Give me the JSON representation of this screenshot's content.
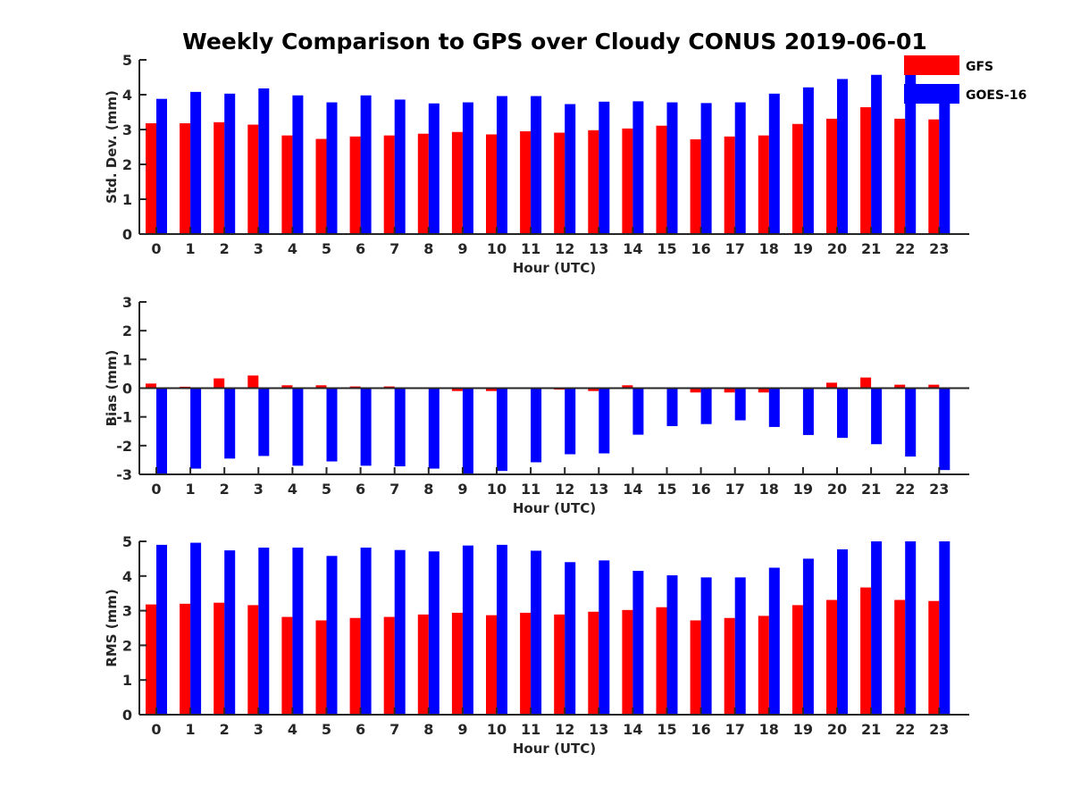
{
  "title": "Weekly Comparison to GPS over Cloudy CONUS 2019-06-01",
  "colors": {
    "GFS": "#ff0000",
    "GOES-16": "#0000ff",
    "axis": "#262626"
  },
  "legend": [
    {
      "name": "GFS",
      "color": "#ff0000"
    },
    {
      "name": "GOES-16",
      "color": "#0000ff"
    }
  ],
  "chart_data": [
    {
      "type": "bar",
      "xlabel": "Hour (UTC)",
      "ylabel": "Std. Dev. (mm)",
      "categories": [
        "0",
        "1",
        "2",
        "3",
        "4",
        "5",
        "6",
        "7",
        "8",
        "9",
        "10",
        "11",
        "12",
        "13",
        "14",
        "15",
        "16",
        "17",
        "18",
        "19",
        "20",
        "21",
        "22",
        "23"
      ],
      "ylim": [
        0,
        5
      ],
      "yticks": [
        0,
        1,
        2,
        3,
        4,
        5
      ],
      "series": [
        {
          "name": "GFS",
          "values": [
            3.18,
            3.18,
            3.21,
            3.14,
            2.83,
            2.73,
            2.8,
            2.83,
            2.88,
            2.93,
            2.86,
            2.95,
            2.91,
            2.98,
            3.03,
            3.11,
            2.72,
            2.8,
            2.83,
            3.16,
            3.31,
            3.64,
            3.31,
            3.29
          ]
        },
        {
          "name": "GOES-16",
          "values": [
            3.88,
            4.08,
            4.03,
            4.18,
            3.98,
            3.78,
            3.98,
            3.86,
            3.75,
            3.78,
            3.96,
            3.96,
            3.73,
            3.8,
            3.81,
            3.78,
            3.76,
            3.78,
            4.03,
            4.21,
            4.45,
            4.57,
            4.57,
            3.95
          ]
        }
      ]
    },
    {
      "type": "bar",
      "xlabel": "Hour (UTC)",
      "ylabel": "Bias (mm)",
      "categories": [
        "0",
        "1",
        "2",
        "3",
        "4",
        "5",
        "6",
        "7",
        "8",
        "9",
        "10",
        "11",
        "12",
        "13",
        "14",
        "15",
        "16",
        "17",
        "18",
        "19",
        "20",
        "21",
        "22",
        "23"
      ],
      "ylim": [
        -3,
        3
      ],
      "yticks": [
        -3,
        -2,
        -1,
        0,
        1,
        2,
        3
      ],
      "zero_line": true,
      "series": [
        {
          "name": "GFS",
          "values": [
            0.16,
            0.05,
            0.34,
            0.44,
            0.1,
            0.1,
            0.06,
            0.06,
            0.0,
            -0.1,
            -0.1,
            0.0,
            -0.05,
            -0.1,
            0.1,
            -0.03,
            -0.15,
            -0.15,
            -0.15,
            0.0,
            0.19,
            0.37,
            0.12,
            0.12
          ]
        },
        {
          "name": "GOES-16",
          "values": [
            -3.0,
            -2.8,
            -2.45,
            -2.36,
            -2.7,
            -2.55,
            -2.7,
            -2.72,
            -2.8,
            -3.0,
            -2.88,
            -2.58,
            -2.3,
            -2.27,
            -1.62,
            -1.32,
            -1.25,
            -1.12,
            -1.35,
            -1.63,
            -1.73,
            -1.95,
            -2.38,
            -2.85
          ]
        }
      ]
    },
    {
      "type": "bar",
      "xlabel": "Hour (UTC)",
      "ylabel": "RMS (mm)",
      "categories": [
        "0",
        "1",
        "2",
        "3",
        "4",
        "5",
        "6",
        "7",
        "8",
        "9",
        "10",
        "11",
        "12",
        "13",
        "14",
        "15",
        "16",
        "17",
        "18",
        "19",
        "20",
        "21",
        "22",
        "23"
      ],
      "ylim": [
        0,
        5
      ],
      "yticks": [
        0,
        1,
        2,
        3,
        4,
        5
      ],
      "series": [
        {
          "name": "GFS",
          "values": [
            3.18,
            3.2,
            3.23,
            3.16,
            2.82,
            2.72,
            2.79,
            2.82,
            2.89,
            2.94,
            2.87,
            2.94,
            2.89,
            2.97,
            3.02,
            3.1,
            2.72,
            2.79,
            2.85,
            3.16,
            3.31,
            3.67,
            3.31,
            3.28
          ]
        },
        {
          "name": "GOES-16",
          "values": [
            4.9,
            4.96,
            4.74,
            4.82,
            4.82,
            4.58,
            4.82,
            4.75,
            4.71,
            4.88,
            4.9,
            4.73,
            4.4,
            4.45,
            4.15,
            4.02,
            3.96,
            3.96,
            4.24,
            4.5,
            4.77,
            5.0,
            5.0,
            5.0
          ]
        }
      ]
    }
  ]
}
